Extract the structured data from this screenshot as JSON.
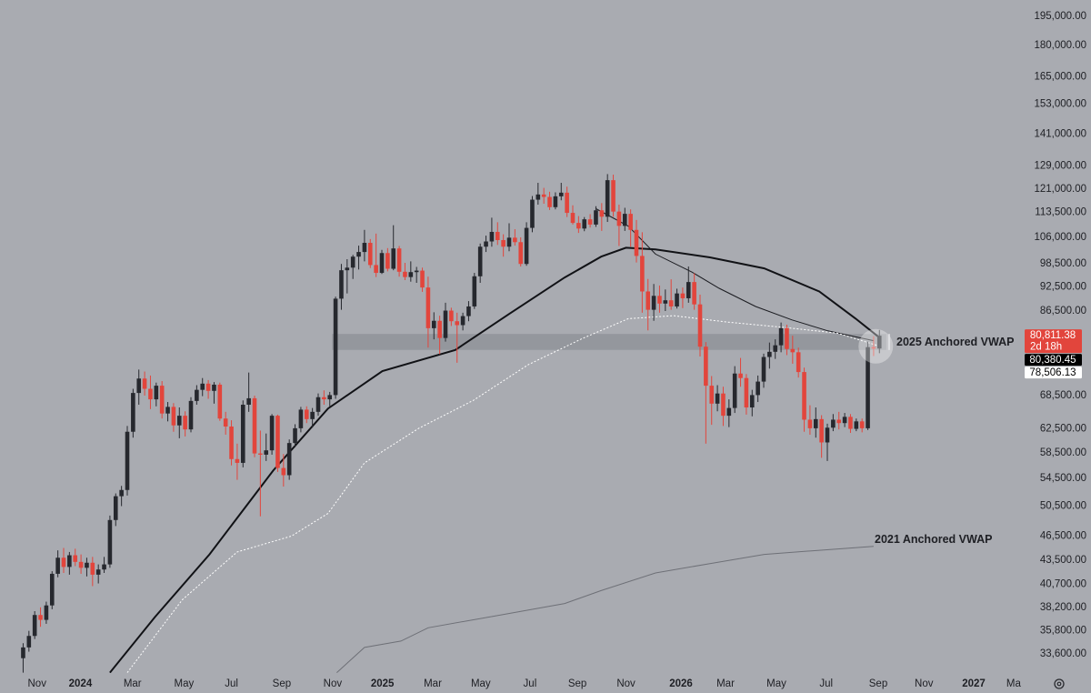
{
  "chart_data": {
    "type": "candlestick",
    "log_scale": true,
    "background": "#a9abb1",
    "colors": {
      "up": "#26282e",
      "down": "#e2453c"
    },
    "xlim": [
      -4,
      172
    ],
    "ylim": [
      31870,
      204000
    ],
    "xticks": [
      {
        "value": 2.4,
        "label": "Nov"
      },
      {
        "value": 9.9,
        "label": "2024",
        "bold": true
      },
      {
        "value": 18.9,
        "label": "Mar"
      },
      {
        "value": 27.8,
        "label": "May"
      },
      {
        "value": 36,
        "label": "Jul"
      },
      {
        "value": 44.7,
        "label": "Sep"
      },
      {
        "value": 53.5,
        "label": "Nov"
      },
      {
        "value": 62.1,
        "label": "2025",
        "bold": true
      },
      {
        "value": 70.8,
        "label": "Mar"
      },
      {
        "value": 79.1,
        "label": "May"
      },
      {
        "value": 87.6,
        "label": "Jul"
      },
      {
        "value": 95.8,
        "label": "Sep"
      },
      {
        "value": 104.2,
        "label": "Nov"
      },
      {
        "value": 113.7,
        "label": "2026",
        "bold": true
      },
      {
        "value": 121.4,
        "label": "Mar"
      },
      {
        "value": 130.2,
        "label": "May"
      },
      {
        "value": 138.8,
        "label": "Jul"
      },
      {
        "value": 147.8,
        "label": "Sep"
      },
      {
        "value": 155.7,
        "label": "Nov"
      },
      {
        "value": 164.3,
        "label": "2027",
        "bold": true
      },
      {
        "value": 171.2,
        "label": "Ma"
      }
    ],
    "yticks": [
      {
        "value": 195000,
        "label": "195,000.00"
      },
      {
        "value": 180000,
        "label": "180,000.00"
      },
      {
        "value": 165000,
        "label": "165,000.00"
      },
      {
        "value": 153000,
        "label": "153,000.00"
      },
      {
        "value": 141000,
        "label": "141,000.00"
      },
      {
        "value": 129000,
        "label": "129,000.00"
      },
      {
        "value": 121000,
        "label": "121,000.00"
      },
      {
        "value": 113500,
        "label": "113,500.00"
      },
      {
        "value": 106000,
        "label": "106,000.00"
      },
      {
        "value": 98500,
        "label": "98,500.00"
      },
      {
        "value": 92500,
        "label": "92,500.00"
      },
      {
        "value": 86500,
        "label": "86,500.00"
      },
      {
        "value": 68500,
        "label": "68,500.00"
      },
      {
        "value": 62500,
        "label": "62,500.00"
      },
      {
        "value": 58500,
        "label": "58,500.00"
      },
      {
        "value": 54500,
        "label": "54,500.00"
      },
      {
        "value": 50500,
        "label": "50,500.00"
      },
      {
        "value": 46500,
        "label": "46,500.00"
      },
      {
        "value": 43500,
        "label": "43,500.00"
      },
      {
        "value": 40700,
        "label": "40,700.00"
      },
      {
        "value": 38200,
        "label": "38,200.00"
      },
      {
        "value": 35800,
        "label": "35,800.00"
      },
      {
        "value": 33600,
        "label": "33,600.00"
      }
    ],
    "candles": [
      [
        33200,
        34600,
        31900,
        34200
      ],
      [
        34200,
        35800,
        33800,
        35300
      ],
      [
        35300,
        37800,
        35000,
        37400
      ],
      [
        37400,
        38200,
        36200,
        36900
      ],
      [
        36900,
        38800,
        36500,
        38400
      ],
      [
        38400,
        42200,
        38000,
        41900
      ],
      [
        41900,
        44700,
        41500,
        43800
      ],
      [
        43800,
        45000,
        42000,
        42700
      ],
      [
        42700,
        44500,
        41800,
        44100
      ],
      [
        44100,
        44900,
        42800,
        43300
      ],
      [
        43300,
        44200,
        41900,
        42600
      ],
      [
        42600,
        43800,
        41600,
        43200
      ],
      [
        43200,
        43900,
        40500,
        41800
      ],
      [
        41800,
        43000,
        40800,
        42400
      ],
      [
        42400,
        43900,
        42000,
        43000
      ],
      [
        43000,
        49200,
        42600,
        48600
      ],
      [
        48600,
        52300,
        47800,
        51900
      ],
      [
        51900,
        53400,
        50500,
        52800
      ],
      [
        52800,
        63000,
        52000,
        62000
      ],
      [
        62000,
        69800,
        61000,
        69000
      ],
      [
        69000,
        73600,
        66800,
        71800
      ],
      [
        71800,
        73200,
        68500,
        69800
      ],
      [
        69800,
        72400,
        66000,
        67800
      ],
      [
        67800,
        71000,
        66500,
        70400
      ],
      [
        70400,
        71300,
        64300,
        65200
      ],
      [
        65200,
        67300,
        63800,
        66400
      ],
      [
        66400,
        67100,
        62000,
        63100
      ],
      [
        63100,
        66300,
        60900,
        64800
      ],
      [
        64800,
        65600,
        61200,
        62400
      ],
      [
        62400,
        68200,
        61900,
        67500
      ],
      [
        67500,
        70500,
        66800,
        69600
      ],
      [
        69600,
        71900,
        68400,
        70800
      ],
      [
        70800,
        71500,
        67900,
        69400
      ],
      [
        69400,
        71100,
        67000,
        70600
      ],
      [
        70600,
        71000,
        63900,
        64300
      ],
      [
        64300,
        65500,
        61500,
        62900
      ],
      [
        62900,
        64000,
        56500,
        57500
      ],
      [
        57500,
        60000,
        54300,
        56900
      ],
      [
        56900,
        67600,
        56200,
        66800
      ],
      [
        66800,
        73000,
        65500,
        68000
      ],
      [
        68000,
        68500,
        57800,
        58400
      ],
      [
        58400,
        62200,
        49100,
        58200
      ],
      [
        58200,
        61700,
        57200,
        58900
      ],
      [
        58900,
        65100,
        58200,
        64800
      ],
      [
        64800,
        65000,
        55500,
        56100
      ],
      [
        56100,
        58300,
        53300,
        55000
      ],
      [
        55000,
        60700,
        54300,
        60100
      ],
      [
        60100,
        63300,
        59400,
        62600
      ],
      [
        62600,
        66400,
        61900,
        65900
      ],
      [
        65900,
        66500,
        63500,
        64200
      ],
      [
        64200,
        66200,
        62700,
        65500
      ],
      [
        65500,
        68900,
        64800,
        68200
      ],
      [
        68200,
        69500,
        66800,
        67800
      ],
      [
        67800,
        69200,
        66500,
        68600
      ],
      [
        68600,
        90000,
        67900,
        89500
      ],
      [
        89500,
        98500,
        86800,
        96800
      ],
      [
        96800,
        99800,
        90800,
        97500
      ],
      [
        97500,
        101000,
        94500,
        100500
      ],
      [
        100500,
        103600,
        97000,
        101800
      ],
      [
        101800,
        108200,
        99200,
        104400
      ],
      [
        104400,
        105500,
        97400,
        98200
      ],
      [
        98200,
        107100,
        95000,
        96100
      ],
      [
        96100,
        102400,
        95800,
        101500
      ],
      [
        101500,
        102900,
        96500,
        97200
      ],
      [
        97200,
        109600,
        96800,
        102800
      ],
      [
        102800,
        103500,
        95100,
        96400
      ],
      [
        96400,
        98800,
        94200,
        95000
      ],
      [
        95000,
        99200,
        93800,
        96300
      ],
      [
        96300,
        97700,
        93500,
        96700
      ],
      [
        96700,
        97500,
        91200,
        92300
      ],
      [
        92300,
        95100,
        78200,
        82500
      ],
      [
        82500,
        86200,
        80000,
        84200
      ],
      [
        84200,
        85400,
        76800,
        80300
      ],
      [
        80300,
        88500,
        79500,
        86600
      ],
      [
        86600,
        87300,
        83000,
        84100
      ],
      [
        84100,
        86100,
        75000,
        83200
      ],
      [
        83200,
        86100,
        82000,
        85300
      ],
      [
        85300,
        88900,
        84100,
        87600
      ],
      [
        87600,
        96100,
        87000,
        95200
      ],
      [
        95200,
        104200,
        93500,
        103300
      ],
      [
        103300,
        106500,
        101800,
        104800
      ],
      [
        104800,
        111900,
        103300,
        107600
      ],
      [
        107600,
        110500,
        103800,
        105200
      ],
      [
        105200,
        106900,
        100500,
        103300
      ],
      [
        103300,
        110200,
        102000,
        105900
      ],
      [
        105900,
        108400,
        103600,
        104600
      ],
      [
        104600,
        106000,
        97800,
        98500
      ],
      [
        98500,
        110500,
        98000,
        108800
      ],
      [
        108800,
        118800,
        107500,
        117600
      ],
      [
        117600,
        123200,
        116000,
        119300
      ],
      [
        119300,
        121500,
        116300,
        118500
      ],
      [
        118500,
        120200,
        114300,
        115200
      ],
      [
        115200,
        120000,
        114500,
        118700
      ],
      [
        118700,
        123200,
        117400,
        119900
      ],
      [
        119900,
        121900,
        112100,
        113400
      ],
      [
        113400,
        115800,
        109800,
        110300
      ],
      [
        110300,
        112400,
        107300,
        108600
      ],
      [
        108600,
        112100,
        107800,
        111400
      ],
      [
        111400,
        113000,
        108900,
        109800
      ],
      [
        109800,
        115500,
        109100,
        114200
      ],
      [
        114200,
        116500,
        107900,
        112200
      ],
      [
        112200,
        126200,
        110600,
        124100
      ],
      [
        124100,
        126000,
        112200,
        113800
      ],
      [
        113800,
        116000,
        103500,
        109400
      ],
      [
        109400,
        115000,
        107900,
        113100
      ],
      [
        113100,
        114500,
        103300,
        108200
      ],
      [
        108200,
        111200,
        98900,
        100700
      ],
      [
        100700,
        107500,
        86100,
        91300
      ],
      [
        91300,
        94500,
        82000,
        86800
      ],
      [
        86800,
        93200,
        84200,
        90200
      ],
      [
        90200,
        92800,
        86100,
        88300
      ],
      [
        88300,
        91800,
        86500,
        89100
      ],
      [
        89100,
        94400,
        86800,
        87600
      ],
      [
        87600,
        92000,
        87100,
        90800
      ],
      [
        90800,
        92300,
        87200,
        89600
      ],
      [
        89600,
        97800,
        88500,
        93700
      ],
      [
        93700,
        96000,
        86800,
        88100
      ],
      [
        88100,
        90500,
        76300,
        78400
      ],
      [
        78400,
        79400,
        60000,
        70400
      ],
      [
        70400,
        72300,
        63200,
        67000
      ],
      [
        67000,
        70500,
        65600,
        68900
      ],
      [
        68900,
        70200,
        63000,
        64800
      ],
      [
        64800,
        67800,
        62800,
        66200
      ],
      [
        66200,
        74300,
        65300,
        72800
      ],
      [
        72800,
        76000,
        70200,
        71900
      ],
      [
        71900,
        72700,
        65000,
        66300
      ],
      [
        66300,
        69600,
        64700,
        68600
      ],
      [
        68600,
        72400,
        67300,
        71200
      ],
      [
        71200,
        76900,
        70000,
        76200
      ],
      [
        76200,
        79300,
        73800,
        77300
      ],
      [
        77300,
        80000,
        75800,
        78700
      ],
      [
        78700,
        83800,
        77200,
        82500
      ],
      [
        82500,
        83300,
        76600,
        77900
      ],
      [
        77900,
        80800,
        74800,
        77200
      ],
      [
        77200,
        78200,
        72000,
        73100
      ],
      [
        73100,
        74000,
        62000,
        64100
      ],
      [
        64100,
        66700,
        61500,
        62600
      ],
      [
        62600,
        66300,
        61000,
        64200
      ],
      [
        64200,
        64900,
        57700,
        60200
      ],
      [
        60200,
        63400,
        57200,
        62700
      ],
      [
        62700,
        65100,
        62100,
        64100
      ],
      [
        64100,
        65500,
        62400,
        63500
      ],
      [
        63500,
        65300,
        62800,
        64600
      ],
      [
        64600,
        65100,
        61800,
        62500
      ],
      [
        62500,
        64300,
        62100,
        63800
      ],
      [
        63800,
        64300,
        61900,
        62600
      ],
      [
        62600,
        79500,
        62300,
        78300
      ],
      [
        78300,
        80700,
        76400,
        78000
      ],
      [
        78000,
        82100,
        77000,
        80811.38
      ]
    ],
    "lines": [
      {
        "color": "#111216",
        "width": 2,
        "x": [
          15,
          22.8,
          32.2,
          43.2,
          52.7,
          62.1,
          74.7,
          84.1,
          93.6,
          99.9,
          104.2,
          109.3,
          118.7,
          128.1,
          137.6,
          143.9,
          148
        ],
        "values": [
          31900,
          37200,
          44200,
          55700,
          66100,
          73300,
          77700,
          85900,
          94900,
          100500,
          103000,
          102500,
          100300,
          97300,
          91300,
          84700,
          80380.45
        ]
      },
      {
        "color": "#1a1b20",
        "width": 1,
        "x": [
          99,
          104.6,
          109.3,
          115.6,
          120.3,
          126.6,
          132.9,
          139.1,
          147
        ],
        "values": [
          114700,
          109300,
          101200,
          96300,
          92100,
          87600,
          84400,
          81900,
          79700
        ]
      },
      {
        "color": "#ffffff",
        "width": 1,
        "dash": "2 2",
        "x": [
          18,
          27.5,
          37,
          46.4,
          52.7,
          59,
          68.4,
          77.8,
          87.3,
          96.7,
          104.6,
          112.4,
          121.8,
          131.3,
          140.7,
          148
        ],
        "values": [
          31900,
          39000,
          44500,
          46500,
          49500,
          56900,
          62600,
          67600,
          74600,
          80200,
          84700,
          85400,
          83900,
          82700,
          81400,
          78506.13
        ]
      },
      {
        "color": "#6e7077",
        "width": 1,
        "x": [
          54.2,
          59,
          65.3,
          70,
          82.5,
          93.6,
          99.9,
          109.3,
          118.7,
          128.1,
          137.6,
          147
        ],
        "values": [
          31900,
          34200,
          34800,
          36100,
          37400,
          38600,
          40000,
          42000,
          43100,
          44200,
          44700,
          45200
        ]
      }
    ],
    "zone": {
      "low": 77700,
      "high": 81200,
      "x": [
        53.4,
        149.2
      ],
      "color": "#8e9097"
    },
    "annotations": [
      {
        "text": "2025 Anchored VWAP"
      },
      {
        "text": "2021 Anchored VWAP"
      }
    ],
    "price_labels": [
      {
        "value": 80811.38,
        "label": "80,811.38",
        "sub": "2d 18h",
        "color": "#e2453c",
        "text_color": "#ffffff"
      },
      {
        "value": 80380.45,
        "label": "80,380.45",
        "color": "#000000",
        "text_color": "#ffffff"
      },
      {
        "value": 78506.13,
        "label": "78,506.13",
        "color": "#ffffff",
        "text_color": "#000000"
      }
    ]
  }
}
